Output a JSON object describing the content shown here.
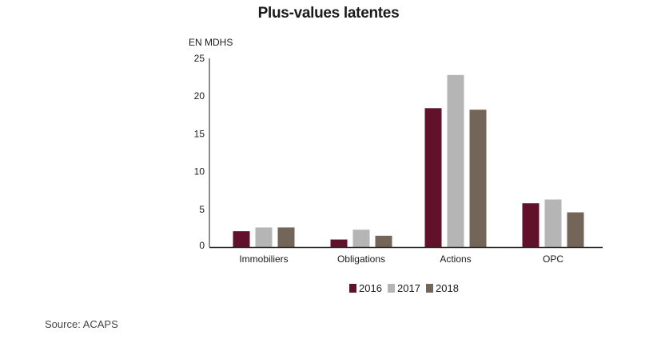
{
  "chart_data": {
    "type": "bar",
    "title": "Plus-values latentes",
    "ylabel": "EN MDHS",
    "xlabel": "",
    "ylim": [
      0,
      25
    ],
    "yticks": [
      0,
      5,
      10,
      15,
      20,
      25
    ],
    "categories": [
      "Immobiliers",
      "Obligations",
      "Actions",
      "OPC"
    ],
    "series": [
      {
        "name": "2016",
        "color": "#62112a",
        "values": [
          2.1,
          1.0,
          18.4,
          5.8
        ]
      },
      {
        "name": "2017",
        "color": "#b5b5b5",
        "values": [
          2.6,
          2.3,
          22.8,
          6.3
        ]
      },
      {
        "name": "2018",
        "color": "#736557",
        "values": [
          2.6,
          1.5,
          18.2,
          4.6
        ]
      }
    ],
    "legend": "bottom",
    "grid": false
  },
  "source": "Source: ACAPS"
}
